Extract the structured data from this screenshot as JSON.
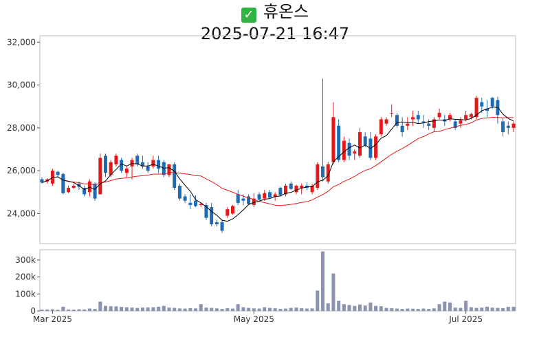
{
  "title": {
    "icon": "check-mark-icon",
    "glyph": "✓",
    "name": "휴온스",
    "datetime": "2025-07-21 16:47"
  },
  "colors": {
    "up": "#e31a1c",
    "down": "#1f6bb5",
    "ma5": "#000000",
    "ma20": "#e31a1c",
    "volume": "#8a93b0"
  },
  "chart_data": [
    {
      "type": "candlestick",
      "title": "2025-07-21 16:47",
      "ylim": [
        22600,
        32300
      ],
      "yticks": [
        24000,
        26000,
        28000,
        30000,
        32000
      ],
      "ytick_labels": [
        "24,000",
        "26,000",
        "28,000",
        "30,000",
        "32,000"
      ],
      "xtick_labels": [
        {
          "label": "Mar 2025",
          "index": 2
        },
        {
          "label": "May 2025",
          "index": 40
        },
        {
          "label": "Jul 2025",
          "index": 80
        }
      ],
      "grid": false,
      "candles": [
        [
          25600,
          25700,
          25400,
          25450
        ],
        [
          25500,
          25650,
          25400,
          25600
        ],
        [
          25400,
          26100,
          25300,
          26000
        ],
        [
          25950,
          26000,
          25700,
          25800
        ],
        [
          25850,
          25900,
          24900,
          24950
        ],
        [
          25000,
          25300,
          24950,
          25200
        ],
        [
          25200,
          25400,
          25150,
          25300
        ],
        [
          25400,
          25500,
          25100,
          25250
        ],
        [
          25200,
          25300,
          24800,
          24900
        ],
        [
          25000,
          25600,
          24800,
          25500
        ],
        [
          25400,
          25450,
          24600,
          24700
        ],
        [
          24900,
          26800,
          24900,
          26600
        ],
        [
          26700,
          26800,
          25700,
          25900
        ],
        [
          25800,
          26500,
          25700,
          26400
        ],
        [
          26300,
          26800,
          26200,
          26700
        ],
        [
          26500,
          26600,
          25900,
          26000
        ],
        [
          25900,
          26200,
          25700,
          26100
        ],
        [
          26200,
          26600,
          25600,
          26500
        ],
        [
          26700,
          26800,
          26200,
          26300
        ],
        [
          26400,
          26700,
          26100,
          26200
        ],
        [
          26200,
          26400,
          25900,
          26000
        ],
        [
          26200,
          26700,
          26100,
          26500
        ],
        [
          26500,
          26700,
          25900,
          26100
        ],
        [
          26400,
          26500,
          25700,
          25800
        ],
        [
          25800,
          26300,
          25700,
          26300
        ],
        [
          26300,
          26400,
          25100,
          25200
        ],
        [
          25300,
          25400,
          24600,
          24700
        ],
        [
          24800,
          24900,
          24500,
          24600
        ],
        [
          24500,
          24900,
          24200,
          24400
        ],
        [
          24600,
          24850,
          24300,
          24350
        ],
        [
          24400,
          24500,
          24300,
          24450
        ],
        [
          24400,
          24500,
          23700,
          23800
        ],
        [
          24300,
          24500,
          23400,
          23500
        ],
        [
          23600,
          23700,
          23400,
          23500
        ],
        [
          23600,
          23700,
          23100,
          23200
        ],
        [
          23900,
          24300,
          23800,
          24200
        ],
        [
          24000,
          24400,
          23950,
          24350
        ],
        [
          24900,
          25100,
          24400,
          24500
        ],
        [
          24700,
          24900,
          24400,
          24600
        ],
        [
          24800,
          24900,
          24400,
          24450
        ],
        [
          24400,
          24950,
          24300,
          24700
        ],
        [
          24900,
          25000,
          24600,
          24650
        ],
        [
          24700,
          25100,
          24600,
          24950
        ],
        [
          25000,
          25100,
          24700,
          24750
        ],
        [
          24800,
          25000,
          24600,
          24900
        ],
        [
          25200,
          25250,
          24800,
          24850
        ],
        [
          24900,
          25400,
          24800,
          25300
        ],
        [
          25400,
          25500,
          25100,
          25150
        ],
        [
          25000,
          25350,
          24900,
          25300
        ],
        [
          25200,
          25400,
          24900,
          25300
        ],
        [
          25300,
          25450,
          25100,
          25200
        ],
        [
          25000,
          25400,
          24900,
          25300
        ],
        [
          25200,
          26400,
          25100,
          26300
        ],
        [
          26200,
          30300,
          25500,
          25700
        ],
        [
          25500,
          26400,
          25400,
          26300
        ],
        [
          26400,
          29200,
          26300,
          28500
        ],
        [
          28100,
          28400,
          26400,
          26500
        ],
        [
          26500,
          27600,
          26400,
          27400
        ],
        [
          27300,
          27500,
          26500,
          26700
        ],
        [
          26800,
          27000,
          26500,
          26900
        ],
        [
          26700,
          28000,
          26600,
          27800
        ],
        [
          27600,
          27800,
          27100,
          27200
        ],
        [
          27500,
          27800,
          26500,
          26600
        ],
        [
          26600,
          27700,
          26500,
          27600
        ],
        [
          27700,
          28500,
          27600,
          28400
        ],
        [
          28200,
          28500,
          28100,
          28400
        ],
        [
          28700,
          29100,
          28500,
          28700
        ],
        [
          28600,
          28700,
          28000,
          28100
        ],
        [
          28100,
          28500,
          27600,
          27800
        ],
        [
          28100,
          28500,
          27900,
          28200
        ],
        [
          28400,
          28800,
          28100,
          28500
        ],
        [
          28600,
          28800,
          28200,
          28400
        ],
        [
          28300,
          28600,
          28000,
          28250
        ],
        [
          28200,
          28400,
          27900,
          28100
        ],
        [
          28000,
          28500,
          27800,
          28400
        ],
        [
          28500,
          28900,
          28400,
          28700
        ],
        [
          28400,
          28600,
          28100,
          28300
        ],
        [
          28400,
          28700,
          28300,
          28600
        ],
        [
          28300,
          28400,
          27900,
          28000
        ],
        [
          28200,
          28500,
          28000,
          28350
        ],
        [
          28400,
          28800,
          28300,
          28600
        ],
        [
          28500,
          28700,
          28400,
          28650
        ],
        [
          28500,
          29500,
          28400,
          29400
        ],
        [
          29200,
          29400,
          28700,
          29000
        ],
        [
          28900,
          29300,
          28500,
          28800
        ],
        [
          29400,
          29450,
          28900,
          29000
        ],
        [
          29300,
          29450,
          28200,
          28600
        ],
        [
          28300,
          28450,
          27600,
          27800
        ],
        [
          28100,
          28300,
          27700,
          28000
        ],
        [
          28000,
          28300,
          27800,
          28200
        ]
      ]
    },
    {
      "type": "bar",
      "ylim": [
        0,
        360000
      ],
      "yticks": [
        0,
        100000,
        200000,
        300000
      ],
      "ytick_labels": [
        "0",
        "100k",
        "200k",
        "300k"
      ]
    }
  ]
}
